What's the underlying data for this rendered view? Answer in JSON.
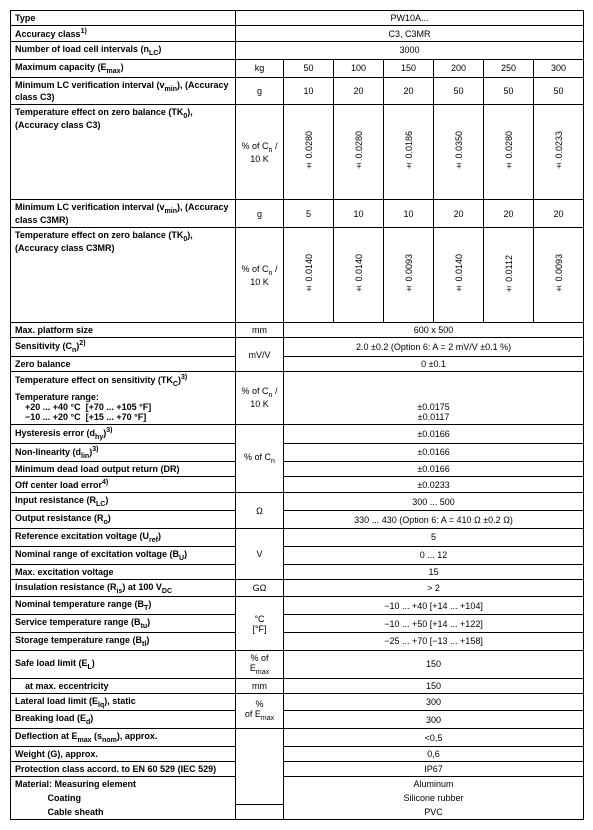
{
  "header": {
    "type_label": "Type",
    "type_value": "PW10A...",
    "acc_label": "Accuracy class<sup>1)</sup>",
    "acc_value": "C3, C3MR",
    "nlc_label": "Number of load cell intervals (n<sub>LC</sub>)",
    "nlc_value": "3000"
  },
  "capacity": {
    "label": "Maximum capacity (E<sub>max</sub>)",
    "unit": "kg",
    "vals": [
      "50",
      "100",
      "150",
      "200",
      "250",
      "300"
    ]
  },
  "c3": {
    "vmin_label": "Minimum LC verification interval (v<sub>min</sub>), (Accuracy class C3)",
    "vmin_unit": "g",
    "vmin_vals": [
      "10",
      "20",
      "20",
      "50",
      "50",
      "50"
    ],
    "tk0_label": "Temperature effect on zero balance (TK<sub>0</sub>), (Accuracy class C3)",
    "tk0_unit": "% of C<sub>n</sub> / 10 K",
    "tk0_vals": [
      "± 0.0280",
      "± 0.0280",
      "± 0.0186",
      "± 0.0350",
      "± 0.0280",
      "± 0.0233"
    ]
  },
  "c3mr": {
    "vmin_label": "Minimum LC verification interval (v<sub>min</sub>), (Accuracy class C3MR)",
    "vmin_unit": "g",
    "vmin_vals": [
      "5",
      "10",
      "10",
      "20",
      "20",
      "20"
    ],
    "tk0_label": "Temperature effect on zero balance (TK<sub>0</sub>), (Accuracy class C3MR)",
    "tk0_unit": "% of C<sub>n</sub> / 10 K",
    "tk0_vals": [
      "± 0.0140",
      "± 0.0140",
      "± 0.0093",
      "± 0.0140",
      "± 0.0112",
      "± 0.0093"
    ]
  },
  "rows": [
    {
      "label": "Max. platform size",
      "unit": "mm",
      "val": "600 x 500"
    },
    {
      "label": "Sensitivity (C<sub>n</sub>)<sup>2)</sup>",
      "unit": "mV/V",
      "val": "2.0 ±0.2 (Option 6: A = 2 mV/V ±0.1 %)",
      "unit_rowspan": 2
    },
    {
      "label": "Zero balance",
      "val": "0 ±0.1"
    },
    {
      "label": "Temperature effect on sensitivity (TK<sub>C</sub>)<sup>3)</sup>",
      "unit": "% of C<sub>n</sub> / 10 K",
      "unit_rowspan": 2,
      "nobot": true
    },
    {
      "label_html": "<b>Temperature range:</b><br>&nbsp;&nbsp;&nbsp;&nbsp;+20 ... +40 °C&nbsp;&nbsp;[+70 ... +105 °F]<br>&nbsp;&nbsp;&nbsp;&nbsp;−10 ... +20 °C&nbsp;&nbsp;[+15 ... +70 °F]",
      "val": "<br>±0.0175<br>±0.0117",
      "notop": true
    },
    {
      "label": "Hysteresis error (d<sub>hy</sub>)<sup>3)</sup>",
      "unit": "% of C<sub>n</sub>",
      "unit_rowspan": 4,
      "val": "±0.0166"
    },
    {
      "label": "Non-linearity (d<sub>lin</sub>)<sup>3)</sup>",
      "val": "±0.0166"
    },
    {
      "label": "Minimum dead load output return (DR)",
      "val": "±0.0166"
    },
    {
      "label": "Off center load error<sup>4)</sup>",
      "val": "±0.0233"
    },
    {
      "label": "Input resistance (R<sub>LC</sub>)",
      "unit": "Ω",
      "unit_rowspan": 2,
      "val": "300 ... 500"
    },
    {
      "label": "Output resistance (R<sub>o</sub>)",
      "val": "330 ... 430 (Option 6: A = 410 Ω ±0.2 Ω)"
    },
    {
      "label": "Reference excitation voltage (U<sub>ref</sub>)",
      "unit": "V",
      "unit_rowspan": 3,
      "val": "5"
    },
    {
      "label": "Nominal range of excitation voltage (B<sub>U</sub>)",
      "val": "0 ... 12"
    },
    {
      "label": "Max. excitation voltage",
      "val": "15"
    },
    {
      "label": "Insulation resistance (R<sub>is</sub>) at 100 V<sub>DC</sub>",
      "unit": "GΩ",
      "val": "> 2"
    },
    {
      "label": "Nominal temperature range (B<sub>T</sub>)",
      "unit": "°C<br>[°F]",
      "unit_rowspan": 3,
      "val": "−10 ... +40 [+14 ... +104]"
    },
    {
      "label": "Service temperature range (B<sub>tu</sub>)",
      "val": "−10 ... +50 [+14 ... +122]"
    },
    {
      "label": "Storage temperature range (B<sub>tl</sub>)",
      "val": "−25 ... +70 [−13 ... +158]"
    },
    {
      "label": "Safe load limit (E<sub>L</sub>)",
      "unit": "% of E<sub>max</sub>",
      "val": "150"
    },
    {
      "label": "&nbsp;&nbsp;&nbsp;&nbsp;at max. eccentricity",
      "unit": "mm",
      "val": "150"
    },
    {
      "label": "Lateral load limit (E<sub>lq</sub>), static",
      "unit": "%<br>of E<sub>max</sub>",
      "unit_rowspan": 2,
      "val": "300"
    },
    {
      "label": "Breaking load (E<sub>d</sub>)",
      "val": "300"
    },
    {
      "label": "Deflection at E<sub>max</sub> (s<sub>nom</sub>), approx.",
      "unit": "",
      "unit_rowspan": 5,
      "val": "<0,5"
    },
    {
      "label": "Weight (G), approx.",
      "val": "0,6"
    },
    {
      "label": "Protection class accord. to EN 60 529 (IEC 529)",
      "val": "IP67"
    },
    {
      "label": "Material: Measuring element",
      "val": "Aluminum",
      "nobot": true
    },
    {
      "label": "&nbsp;&nbsp;&nbsp;&nbsp;&nbsp;&nbsp;&nbsp;&nbsp;&nbsp;&nbsp;&nbsp;&nbsp;&nbsp;Coating",
      "val": "Silicone rubber",
      "notop": true,
      "nobot": true
    },
    {
      "label": "&nbsp;&nbsp;&nbsp;&nbsp;&nbsp;&nbsp;&nbsp;&nbsp;&nbsp;&nbsp;&nbsp;&nbsp;&nbsp;Cable sheath",
      "val": "PVC",
      "notop": true
    }
  ]
}
